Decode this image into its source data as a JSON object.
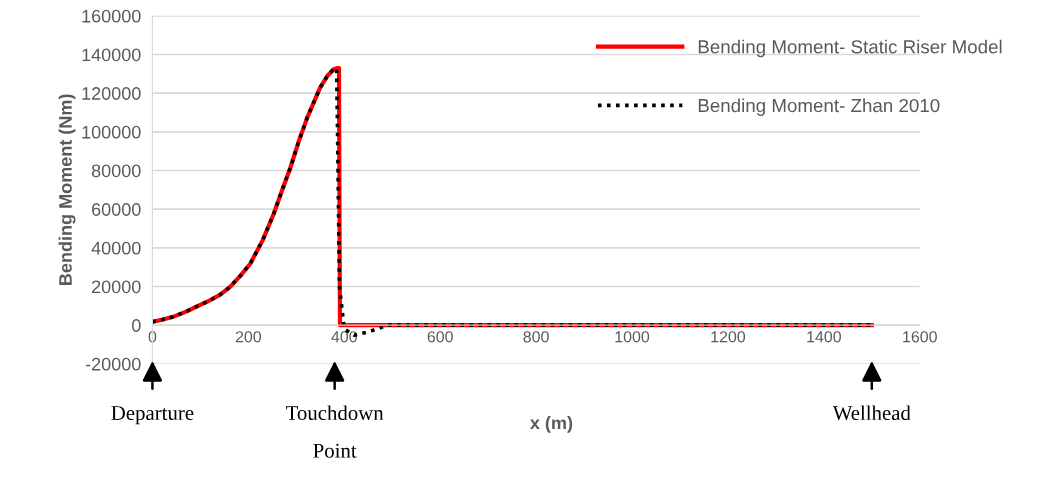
{
  "chart_data": {
    "type": "line",
    "xlabel": "x (m)",
    "ylabel": "Bending Moment (Nm)",
    "xlim": [
      0,
      1600
    ],
    "xticks": [
      0,
      200,
      400,
      600,
      800,
      1000,
      1200,
      1400,
      1600
    ],
    "ylim": [
      -20000,
      160000
    ],
    "yticks": [
      -20000,
      0,
      20000,
      40000,
      60000,
      80000,
      100000,
      120000,
      140000,
      160000
    ],
    "grid": "y",
    "legend": "top right",
    "series": [
      {
        "name": "Bending Moment- Static Riser Model",
        "color": "#ff0000",
        "line_style": "solid",
        "x": [
          0,
          20,
          43,
          70,
          113,
          140,
          162,
          185,
          204,
          230,
          253,
          270,
          288,
          305,
          323,
          350,
          365,
          378,
          386,
          389,
          391,
          600,
          1000,
          1500
        ],
        "values": [
          1700,
          2800,
          4300,
          7000,
          12000,
          15500,
          19800,
          26000,
          31800,
          44000,
          57600,
          69500,
          81700,
          95000,
          107500,
          123000,
          129000,
          132400,
          133000,
          133000,
          0,
          0,
          0,
          0
        ]
      },
      {
        "name": "Bending Moment- Zhan 2010",
        "color": "#000000",
        "line_style": "dotted",
        "x": [
          0,
          20,
          43,
          70,
          113,
          140,
          162,
          185,
          204,
          230,
          253,
          270,
          288,
          305,
          323,
          350,
          365,
          378,
          384,
          386,
          390,
          400,
          421,
          450,
          491,
          600,
          1000,
          1500
        ],
        "values": [
          1700,
          2800,
          4300,
          7000,
          12000,
          15500,
          19800,
          26000,
          31800,
          44000,
          57600,
          69500,
          81700,
          95000,
          107500,
          123000,
          129000,
          132400,
          133000,
          100000,
          20000,
          -2000,
          -5200,
          -3500,
          0,
          0,
          0,
          0
        ]
      }
    ],
    "annotations": [
      {
        "text": "Departure",
        "x": 0
      },
      {
        "text": "Touchdown\nPoint",
        "x": 380
      },
      {
        "text": "Wellhead",
        "x": 1500
      }
    ]
  }
}
